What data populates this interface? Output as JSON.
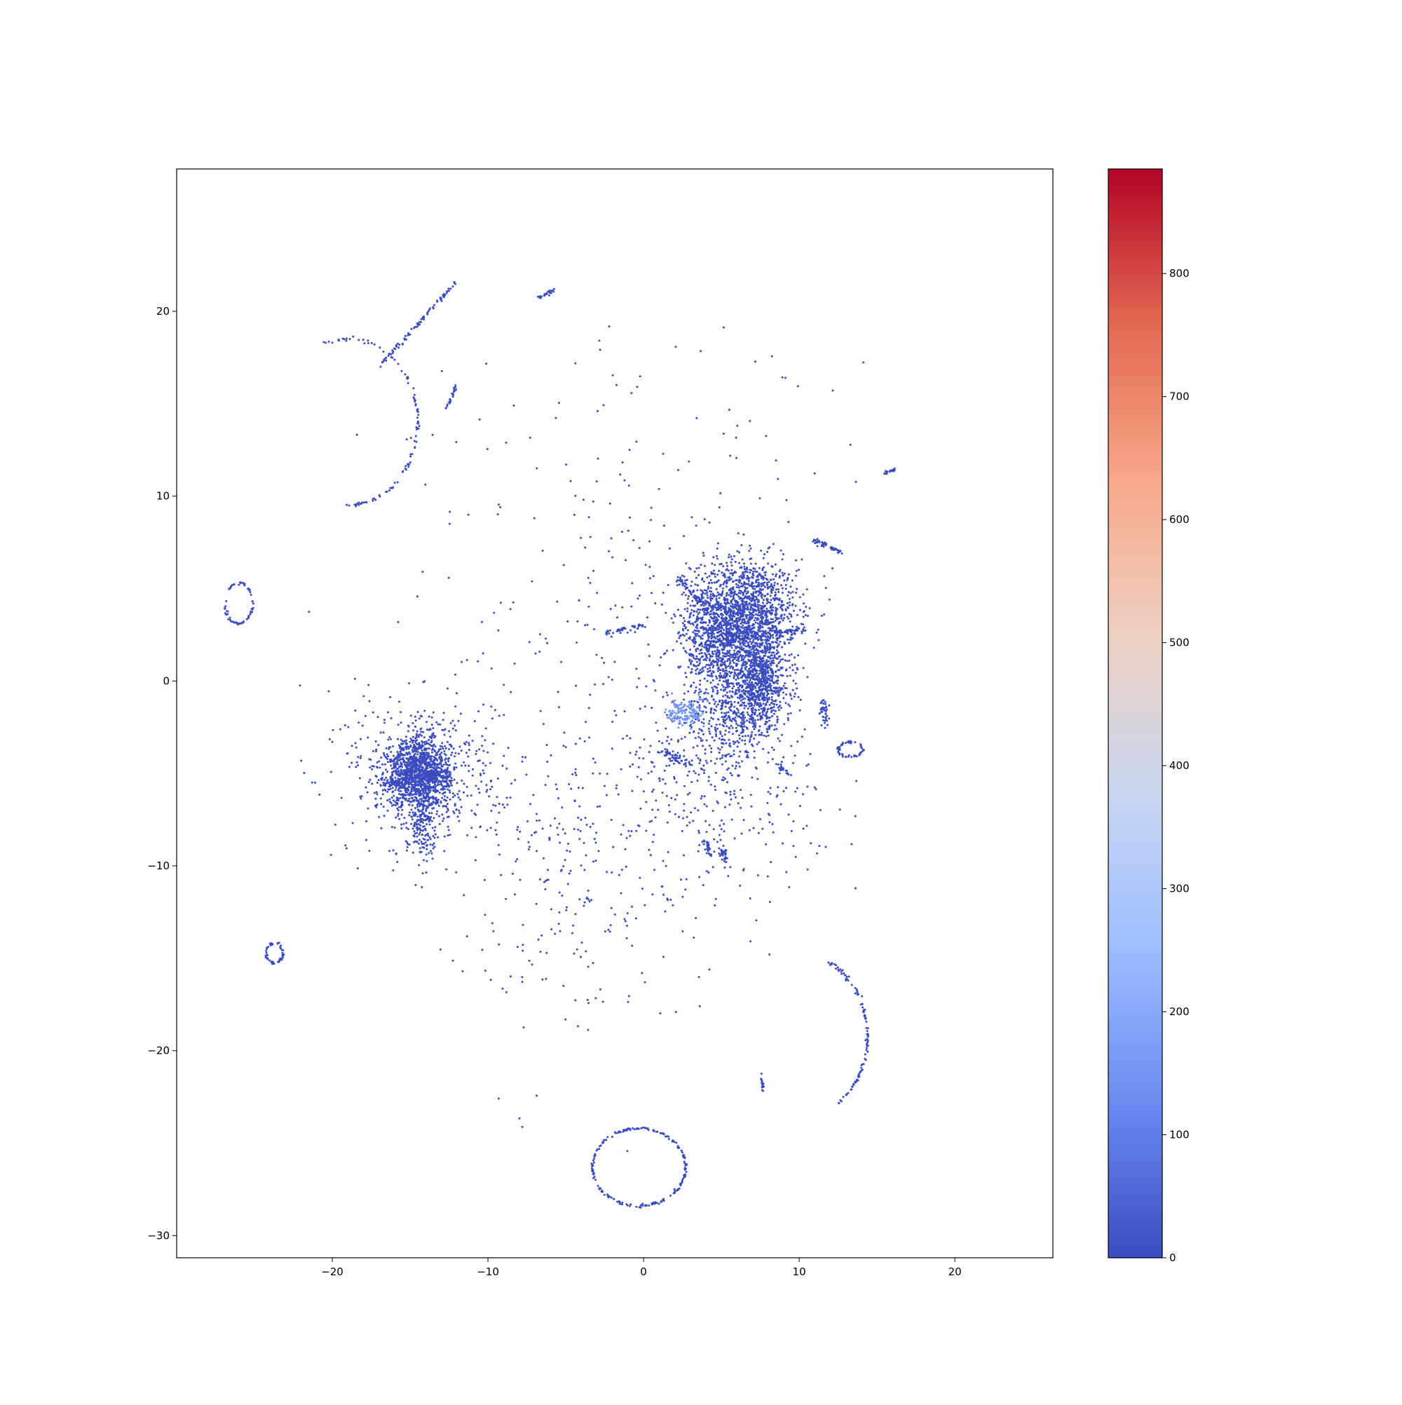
{
  "chart_data": {
    "type": "scatter",
    "title": "",
    "xlabel": "",
    "ylabel": "",
    "xlim": [
      -30,
      26.3
    ],
    "ylim": [
      -31.2,
      27.7
    ],
    "grid": false,
    "legend": "none",
    "x_ticks": [
      {
        "value": -20,
        "label": "−20"
      },
      {
        "value": -10,
        "label": "−10"
      },
      {
        "value": 0,
        "label": "0"
      },
      {
        "value": 10,
        "label": "10"
      },
      {
        "value": 20,
        "label": "20"
      }
    ],
    "y_ticks": [
      {
        "value": -30,
        "label": "−30"
      },
      {
        "value": -20,
        "label": "−20"
      },
      {
        "value": -10,
        "label": "−10"
      },
      {
        "value": 0,
        "label": "0"
      },
      {
        "value": 10,
        "label": "10"
      },
      {
        "value": 20,
        "label": "20"
      }
    ],
    "colorbar": {
      "colormap": "coolwarm",
      "range": [
        0,
        885
      ],
      "ticks": [
        {
          "value": 0,
          "label": "0"
        },
        {
          "value": 100,
          "label": "100"
        },
        {
          "value": 200,
          "label": "200"
        },
        {
          "value": 300,
          "label": "300"
        },
        {
          "value": 400,
          "label": "400"
        },
        {
          "value": 500,
          "label": "500"
        },
        {
          "value": 600,
          "label": "600"
        },
        {
          "value": 700,
          "label": "700"
        },
        {
          "value": 800,
          "label": "800"
        }
      ],
      "colors": [
        "#3b4cc0",
        "#6a8bef",
        "#9ebeff",
        "#c9d7f0",
        "#edd1c2",
        "#f7a889",
        "#e26952",
        "#b40426"
      ]
    },
    "point_color": "#3b4cc0",
    "highlight_color": "#6f92f3",
    "clusters": [
      {
        "shape": "blob",
        "cx": 6.5,
        "cy": 3.8,
        "sx": 1.7,
        "sy": 1.4,
        "n": 1400
      },
      {
        "shape": "blob",
        "cx": 4.8,
        "cy": 2.0,
        "sx": 1.1,
        "sy": 1.5,
        "n": 600
      },
      {
        "shape": "blob",
        "cx": 7.5,
        "cy": 0.0,
        "sx": 1.0,
        "sy": 1.2,
        "n": 800
      },
      {
        "shape": "blob",
        "cx": 5.5,
        "cy": -2.0,
        "sx": 1.6,
        "sy": 1.2,
        "n": 400
      },
      {
        "shape": "blob",
        "cx": 4.5,
        "cy": -6.0,
        "sx": 3.5,
        "sy": 2.5,
        "n": 300
      },
      {
        "shape": "blob",
        "cx": -14.5,
        "cy": -4.9,
        "sx": 1.0,
        "sy": 0.9,
        "n": 1100
      },
      {
        "shape": "blob",
        "cx": -14.0,
        "cy": -5.0,
        "sx": 2.5,
        "sy": 2.2,
        "n": 500
      },
      {
        "shape": "blob",
        "cx": -14.3,
        "cy": -7.5,
        "sx": 0.5,
        "sy": 1.0,
        "n": 200
      },
      {
        "shape": "blob",
        "cx": -5.0,
        "cy": -10.0,
        "sx": 4.0,
        "sy": 4.5,
        "n": 260
      },
      {
        "shape": "blob",
        "cx": -1.0,
        "cy": 5.0,
        "sx": 7.0,
        "sy": 7.0,
        "n": 260
      },
      {
        "shape": "blob",
        "cx": 2.7,
        "cy": -1.7,
        "sx": 0.6,
        "sy": 0.4,
        "n": 140,
        "highlight": true
      },
      {
        "shape": "segment",
        "x1": -16.5,
        "y1": -5.6,
        "x2": -12.5,
        "y2": -5.0,
        "w": 0.15,
        "n": 160
      },
      {
        "shape": "segment",
        "x1": 4.0,
        "y1": 2.0,
        "x2": 10.3,
        "y2": 2.8,
        "w": 0.12,
        "n": 140
      },
      {
        "shape": "segment",
        "x1": 2.3,
        "y1": 5.6,
        "x2": 4.5,
        "y2": 3.5,
        "w": 0.12,
        "n": 70
      },
      {
        "shape": "segment",
        "x1": 1.0,
        "y1": -3.7,
        "x2": 3.0,
        "y2": -4.5,
        "w": 0.12,
        "n": 50
      },
      {
        "shape": "segment",
        "x1": -2.4,
        "y1": 2.6,
        "x2": 0.0,
        "y2": 3.0,
        "w": 0.08,
        "n": 40
      },
      {
        "shape": "arc",
        "cx": -19.0,
        "cy": 14.0,
        "r": 4.5,
        "a1": -90,
        "a2": 110,
        "n": 110
      },
      {
        "shape": "segment",
        "x1": -17.0,
        "y1": 17.0,
        "x2": -11.8,
        "y2": 21.8,
        "w": 0.06,
        "n": 80
      },
      {
        "shape": "ring",
        "cx": -26.0,
        "cy": 4.2,
        "rx": 0.9,
        "ry": 1.1,
        "n": 70
      },
      {
        "shape": "ring",
        "cx": -23.7,
        "cy": -14.7,
        "rx": 0.55,
        "ry": 0.55,
        "n": 55
      },
      {
        "shape": "ring",
        "cx": -0.3,
        "cy": -26.3,
        "rx": 3.0,
        "ry": 2.1,
        "n": 200
      },
      {
        "shape": "arc",
        "cx": 10.0,
        "cy": -19.2,
        "r": 4.4,
        "a1": -55,
        "a2": 65,
        "n": 110
      },
      {
        "shape": "segment",
        "x1": 7.5,
        "y1": -21.0,
        "x2": 7.7,
        "y2": -22.2,
        "w": 0.05,
        "n": 20
      },
      {
        "shape": "ring",
        "cx": 13.3,
        "cy": -3.7,
        "rx": 0.8,
        "ry": 0.4,
        "n": 60
      },
      {
        "shape": "segment",
        "x1": 11.0,
        "y1": 7.6,
        "x2": 12.7,
        "y2": 7.0,
        "w": 0.08,
        "n": 50
      },
      {
        "shape": "segment",
        "x1": 11.5,
        "y1": -1.0,
        "x2": 11.7,
        "y2": -2.5,
        "w": 0.15,
        "n": 40
      },
      {
        "shape": "segment",
        "x1": -12.7,
        "y1": 14.7,
        "x2": -12.0,
        "y2": 16.0,
        "w": 0.05,
        "n": 25
      },
      {
        "shape": "segment",
        "x1": -6.8,
        "y1": 20.7,
        "x2": -5.6,
        "y2": 21.2,
        "w": 0.05,
        "n": 25
      },
      {
        "shape": "segment",
        "x1": 15.5,
        "y1": 11.2,
        "x2": 16.2,
        "y2": 11.5,
        "w": 0.05,
        "n": 20
      },
      {
        "shape": "segment",
        "x1": 4.0,
        "y1": -8.5,
        "x2": 4.2,
        "y2": -9.5,
        "w": 0.1,
        "n": 30
      },
      {
        "shape": "segment",
        "x1": 5.0,
        "y1": -9.0,
        "x2": 5.3,
        "y2": -9.8,
        "w": 0.1,
        "n": 30
      },
      {
        "shape": "segment",
        "x1": 8.5,
        "y1": -4.5,
        "x2": 9.5,
        "y2": -5.2,
        "w": 0.08,
        "n": 25
      }
    ]
  }
}
